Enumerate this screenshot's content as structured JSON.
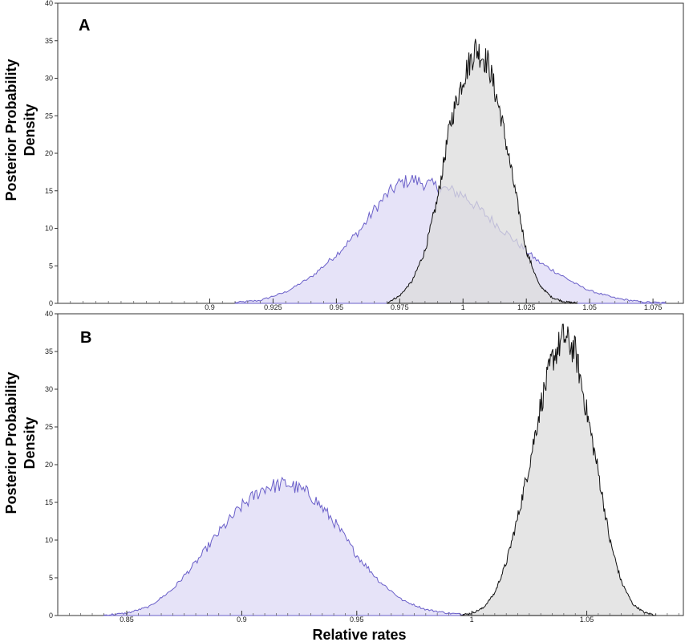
{
  "chart_data": [
    {
      "type": "area",
      "panel_label": "A",
      "ylabel": [
        "Posterior Probability",
        "Density"
      ],
      "xlabel": "",
      "ylim": [
        0,
        40
      ],
      "xlim": [
        0.84,
        1.087
      ],
      "yticks": [
        0,
        5,
        10,
        15,
        20,
        25,
        30,
        35,
        40
      ],
      "xticks": [
        "0.9",
        "0.925",
        "0.95",
        "0.975",
        "1",
        "1.025",
        "1.05",
        "1.075"
      ],
      "grid": false,
      "series": [
        {
          "color": "#6a5fc9",
          "fill": "#e3e0f7",
          "x": [
            0.91,
            0.92,
            0.93,
            0.94,
            0.95,
            0.96,
            0.965,
            0.97,
            0.975,
            0.98,
            0.985,
            0.99,
            0.995,
            1.0,
            1.005,
            1.01,
            1.015,
            1.02,
            1.025,
            1.03,
            1.035,
            1.04,
            1.045,
            1.05,
            1.06,
            1.07,
            1.08
          ],
          "y": [
            0.1,
            0.4,
            1.5,
            3.5,
            6.5,
            10,
            12.5,
            14.5,
            16,
            16.5,
            16,
            15.5,
            15,
            14.5,
            13,
            11.5,
            10,
            8.5,
            7,
            5.5,
            4.5,
            3.5,
            2.5,
            1.7,
            0.7,
            0.2,
            0.05
          ]
        },
        {
          "color": "#111111",
          "fill": "#dcdcdc",
          "x": [
            0.97,
            0.975,
            0.98,
            0.985,
            0.99,
            0.995,
            1.0,
            1.005,
            1.01,
            1.015,
            1.02,
            1.025,
            1.03,
            1.035,
            1.04,
            1.045
          ],
          "y": [
            0.1,
            1,
            3,
            7,
            14,
            24,
            30,
            34,
            32,
            25,
            16,
            7,
            2.5,
            0.8,
            0.2,
            0.05
          ]
        }
      ]
    },
    {
      "type": "area",
      "panel_label": "B",
      "ylabel": [
        "Posterior Probability",
        "Density"
      ],
      "xlabel": "Relative rates",
      "ylim": [
        0,
        40
      ],
      "xlim": [
        0.82,
        1.092
      ],
      "yticks": [
        0,
        5,
        10,
        15,
        20,
        25,
        30,
        35,
        40
      ],
      "xticks": [
        "0.85",
        "0.9",
        "0.95",
        "1",
        "1.05"
      ],
      "grid": false,
      "series": [
        {
          "color": "#6a5fc9",
          "fill": "#e3e0f7",
          "x": [
            0.84,
            0.85,
            0.86,
            0.87,
            0.88,
            0.89,
            0.9,
            0.91,
            0.92,
            0.93,
            0.94,
            0.95,
            0.96,
            0.97,
            0.98,
            0.99,
            1.0
          ],
          "y": [
            0.05,
            0.3,
            1.2,
            3.5,
            7,
            11,
            14.5,
            17,
            17.5,
            16,
            12.5,
            8,
            4.5,
            2,
            0.8,
            0.3,
            0.05
          ]
        },
        {
          "color": "#111111",
          "fill": "#dcdcdc",
          "x": [
            0.995,
            1.0,
            1.005,
            1.01,
            1.015,
            1.02,
            1.025,
            1.03,
            1.035,
            1.04,
            1.045,
            1.05,
            1.055,
            1.06,
            1.065,
            1.07,
            1.075,
            1.08
          ],
          "y": [
            0.05,
            0.3,
            1,
            3,
            7,
            13,
            20,
            28,
            34,
            37,
            35,
            27,
            19,
            10,
            4.5,
            1.5,
            0.4,
            0.05
          ]
        }
      ]
    }
  ]
}
